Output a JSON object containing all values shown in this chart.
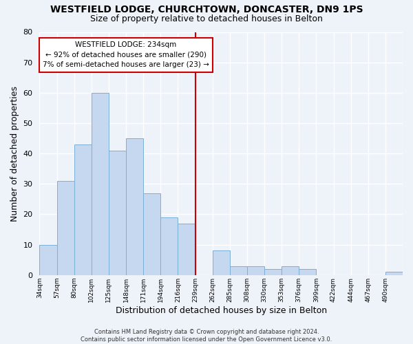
{
  "title": "WESTFIELD LODGE, CHURCHTOWN, DONCASTER, DN9 1PS",
  "subtitle": "Size of property relative to detached houses in Belton",
  "xlabel": "Distribution of detached houses by size in Belton",
  "ylabel": "Number of detached properties",
  "footer_line1": "Contains HM Land Registry data © Crown copyright and database right 2024.",
  "footer_line2": "Contains public sector information licensed under the Open Government Licence v3.0.",
  "bin_labels": [
    "34sqm",
    "57sqm",
    "80sqm",
    "102sqm",
    "125sqm",
    "148sqm",
    "171sqm",
    "194sqm",
    "216sqm",
    "239sqm",
    "262sqm",
    "285sqm",
    "308sqm",
    "330sqm",
    "353sqm",
    "376sqm",
    "399sqm",
    "422sqm",
    "444sqm",
    "467sqm",
    "490sqm"
  ],
  "bar_values": [
    10,
    31,
    43,
    60,
    41,
    45,
    27,
    19,
    17,
    0,
    8,
    3,
    3,
    2,
    3,
    2,
    0,
    0,
    0,
    0,
    1
  ],
  "bar_color": "#c5d8f0",
  "bar_edge_color": "#7bafd4",
  "ylim": [
    0,
    80
  ],
  "yticks": [
    0,
    10,
    20,
    30,
    40,
    50,
    60,
    70,
    80
  ],
  "vline_x_index": 9,
  "vline_color": "#cc0000",
  "annotation_line1": "WESTFIELD LODGE: 234sqm",
  "annotation_line2": "← 92% of detached houses are smaller (290)",
  "annotation_line3": "7% of semi-detached houses are larger (23) →",
  "annotation_box_color": "#ffffff",
  "annotation_box_edge": "#cc0000",
  "background_color": "#eef2f9",
  "grid_color": "#ffffff",
  "title_fontsize": 10,
  "subtitle_fontsize": 9
}
